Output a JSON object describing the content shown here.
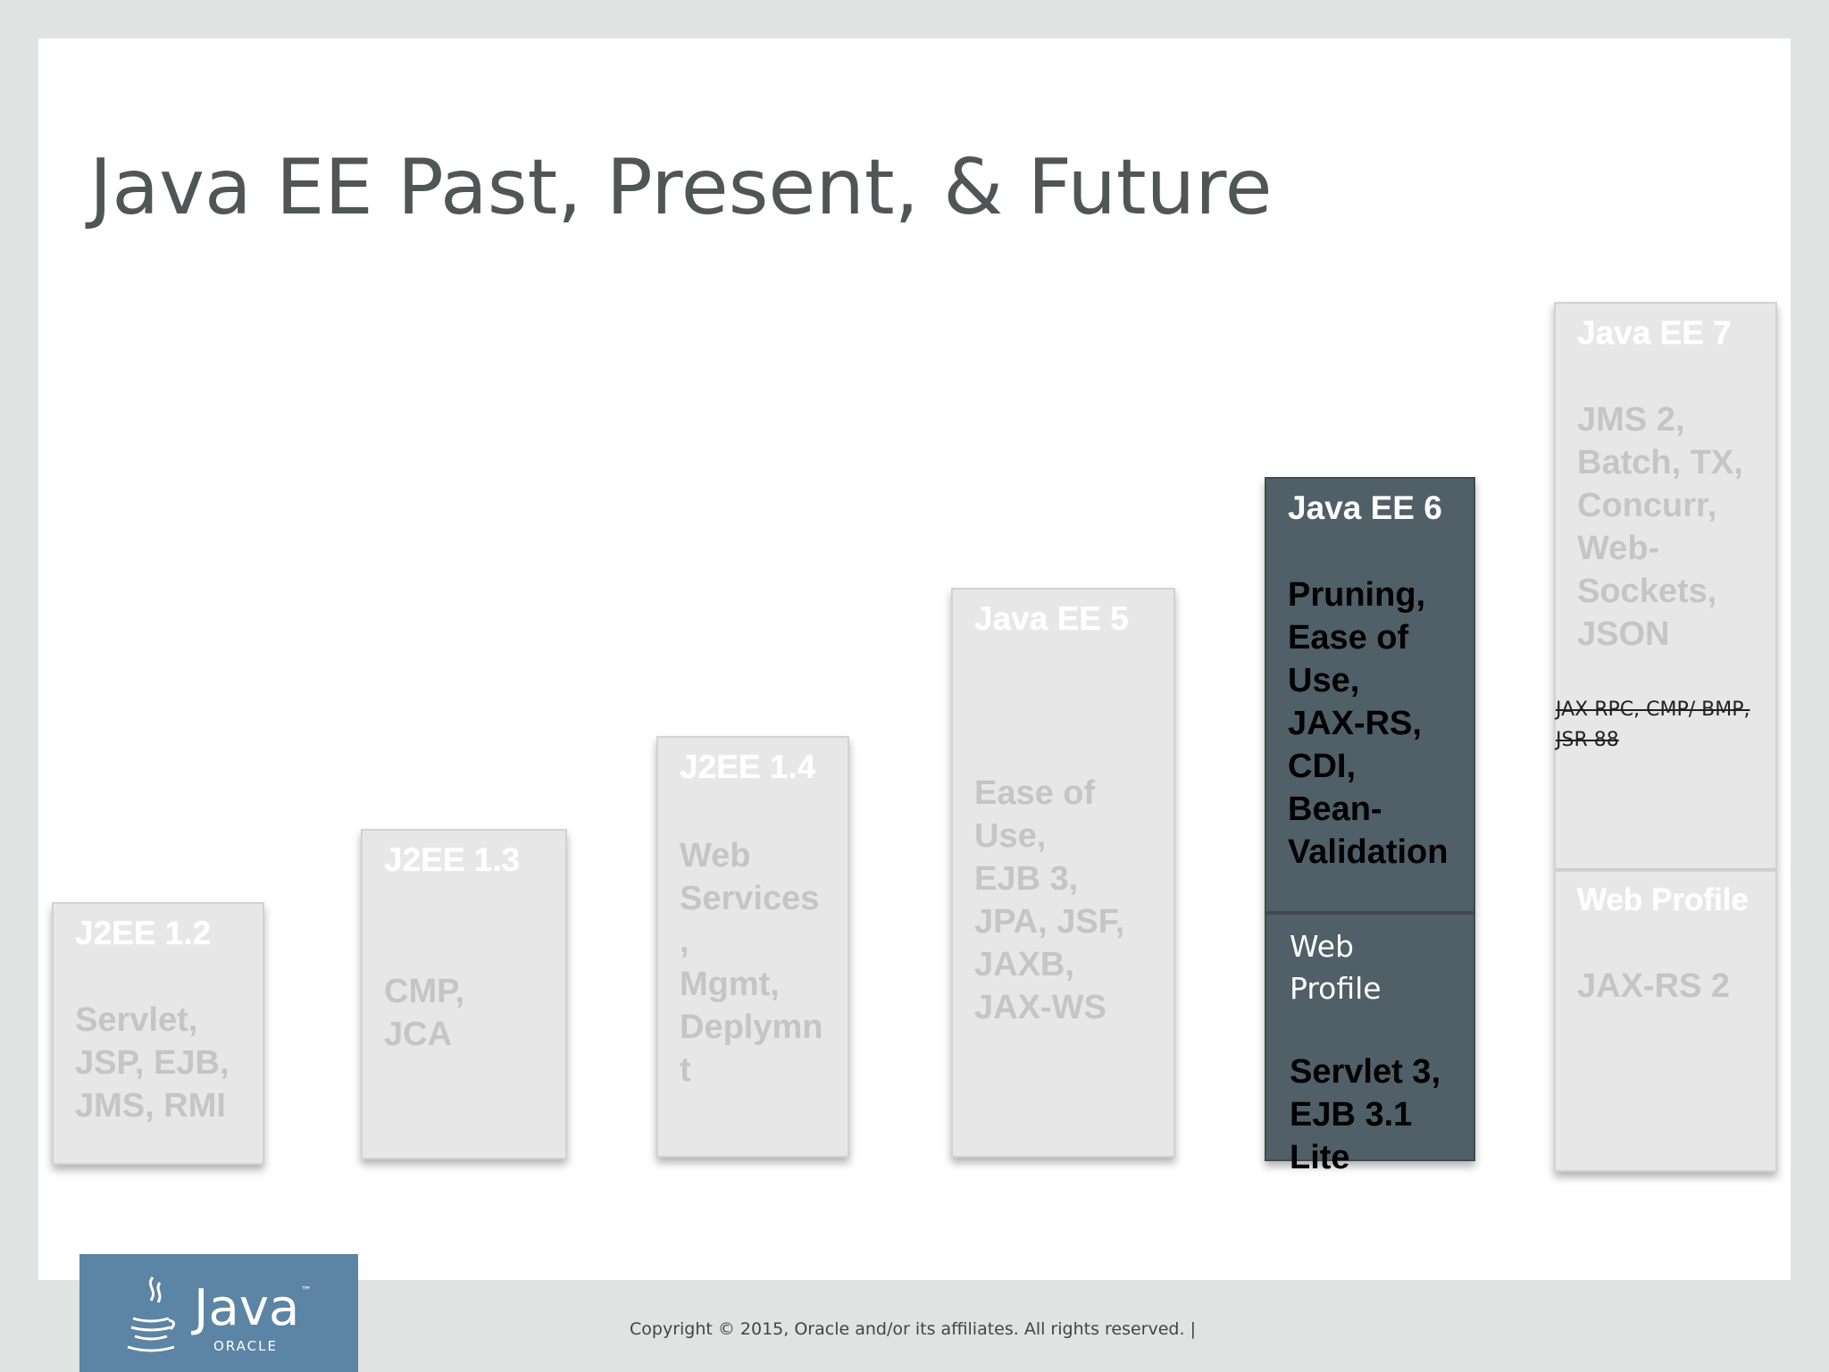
{
  "title": "Java EE Past, Present, & Future",
  "releases": [
    {
      "header": "J2EE 1.2",
      "body": "Servlet,\nJSP, EJB,\nJMS, RMI"
    },
    {
      "header": "J2EE 1.3",
      "body": "CMP,\nJCA"
    },
    {
      "header": "J2EE 1.4",
      "body": "Web\nServices\n,\nMgmt,\nDeplymn\nt"
    },
    {
      "header": "Java EE 5",
      "body": "Ease of\nUse,\nEJB 3,\nJPA, JSF,\nJAXB,\nJAX-WS"
    },
    {
      "header": "Java EE 6",
      "body": "Pruning,\nEase of\nUse,\nJAX-RS,\nCDI,\nBean-\nValidation"
    },
    {
      "header": "Web\nProfile",
      "body": "Servlet 3,\nEJB 3.1\nLite"
    },
    {
      "header": "Java EE 7",
      "body": "JMS 2,\nBatch, TX,\nConcurr,\nWeb-\nSockets,\nJSON"
    },
    {
      "header": "Web Profile",
      "body": "JAX-RS 2"
    }
  ],
  "pruned_text": "JAX RPC, CMP/ BMP,\nJSR 88",
  "logo": {
    "brand": "Java",
    "tm": "™",
    "company": "ORACLE"
  },
  "footer": "Copyright © 2015, Oracle and/or its affiliates. All rights reserved.  |",
  "colors": {
    "highlight_block": "#505f68",
    "faded_block": "#e7e7e7",
    "logo_bg": "#5c84a4"
  }
}
